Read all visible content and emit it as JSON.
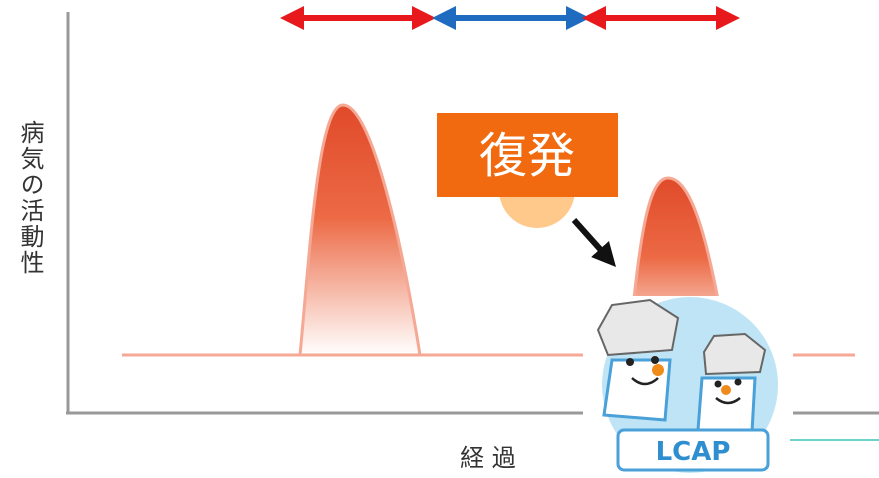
{
  "y_axis_label": "病気の活動性",
  "x_axis_label": "経 過",
  "callout": "復発",
  "mascot_banner": "LCAP"
}
